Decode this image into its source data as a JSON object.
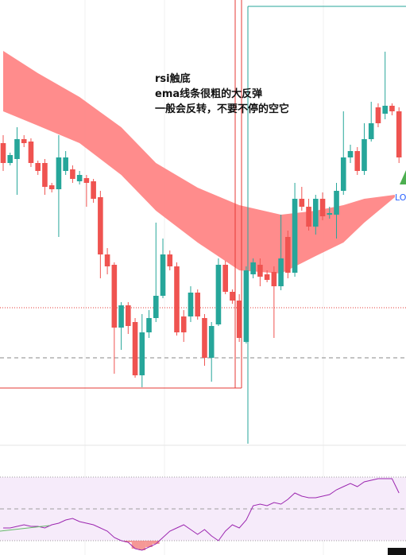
{
  "chart_data": {
    "type": "candlestick",
    "annotation": [
      "rsi触底",
      "ema线条很粗的大反弹",
      "一般会反转，不要不停的空它"
    ],
    "label": "LO",
    "ylim": [
      0,
      560
    ],
    "up_color": "#26a69a",
    "down_color": "#ef5350",
    "open": [
      380,
      355,
      360,
      385,
      382,
      355,
      355,
      327,
      322,
      345,
      347,
      332,
      336,
      332,
      312,
      240,
      227,
      148,
      176,
      155,
      88,
      142,
      160,
      188,
      240,
      225,
      162,
      162,
      192,
      160,
      110,
      152,
      227,
      193,
      182,
      130,
      215,
      227,
      215,
      218,
      200,
      262,
      217,
      310,
      300,
      275,
      310,
      290,
      290,
      320,
      362,
      370,
      345,
      385,
      425,
      417,
      427,
      420
    ],
    "high": [
      390,
      368,
      400,
      390,
      386,
      358,
      360,
      330,
      390,
      370,
      352,
      345,
      340,
      335,
      320,
      248,
      230,
      180,
      180,
      160,
      165,
      170,
      280,
      260,
      245,
      230,
      170,
      200,
      196,
      165,
      155,
      235,
      232,
      196,
      190,
      225,
      235,
      235,
      220,
      225,
      290,
      270,
      330,
      325,
      310,
      315,
      318,
      300,
      330,
      420,
      378,
      375,
      405,
      432,
      430,
      495,
      430,
      425
    ],
    "low": [
      345,
      352,
      315,
      375,
      350,
      340,
      315,
      318,
      262,
      340,
      330,
      328,
      300,
      305,
      210,
      215,
      90,
      120,
      140,
      85,
      73,
      135,
      155,
      185,
      220,
      138,
      130,
      155,
      158,
      100,
      80,
      150,
      190,
      178,
      130,
      128,
      210,
      200,
      205,
      135,
      195,
      210,
      212,
      295,
      270,
      265,
      283,
      285,
      260,
      315,
      355,
      340,
      340,
      382,
      400,
      410,
      415,
      355
    ],
    "close": [
      355,
      365,
      385,
      380,
      355,
      345,
      325,
      322,
      362,
      362,
      335,
      340,
      330,
      310,
      240,
      225,
      148,
      176,
      150,
      88,
      142,
      160,
      188,
      240,
      225,
      142,
      142,
      192,
      162,
      110,
      150,
      227,
      193,
      182,
      135,
      220,
      230,
      212,
      208,
      200,
      235,
      217,
      310,
      300,
      275,
      310,
      288,
      292,
      320,
      362,
      370,
      345,
      385,
      405,
      405,
      427,
      420,
      362
    ],
    "band": {
      "color": "#ff7f7f",
      "x": [
        0,
        5,
        11,
        17,
        22,
        28,
        34,
        40,
        45,
        49,
        52,
        56.4
      ],
      "upper": [
        496,
        468,
        438,
        400,
        355,
        324,
        302,
        290,
        295,
        302,
        310,
        315
      ],
      "lower": [
        420,
        402,
        380,
        340,
        295,
        255,
        220,
        216,
        238,
        255,
        280,
        312
      ]
    },
    "hlines": [
      {
        "value": 173,
        "color": "#e53935",
        "style": "dotted"
      },
      {
        "value": 110,
        "color": "#888888",
        "style": "dashed"
      }
    ],
    "rsi": {
      "color": "#9c27b0",
      "ylim": [
        21,
        90
      ],
      "levels": [
        70,
        50,
        30
      ],
      "fill": "#f6ebfa",
      "values": [
        38,
        38,
        39,
        40,
        39,
        39,
        38,
        40,
        41,
        43,
        44,
        42,
        41,
        40,
        38,
        36,
        32,
        30,
        29,
        25,
        24,
        26,
        28,
        32,
        36,
        38,
        40,
        37,
        34,
        37,
        33,
        30,
        36,
        40,
        38,
        43,
        52,
        53,
        52,
        54,
        53,
        56,
        60,
        58,
        57,
        57,
        58,
        59,
        62,
        64,
        66,
        64,
        67,
        68,
        69,
        69,
        69,
        60
      ]
    }
  }
}
